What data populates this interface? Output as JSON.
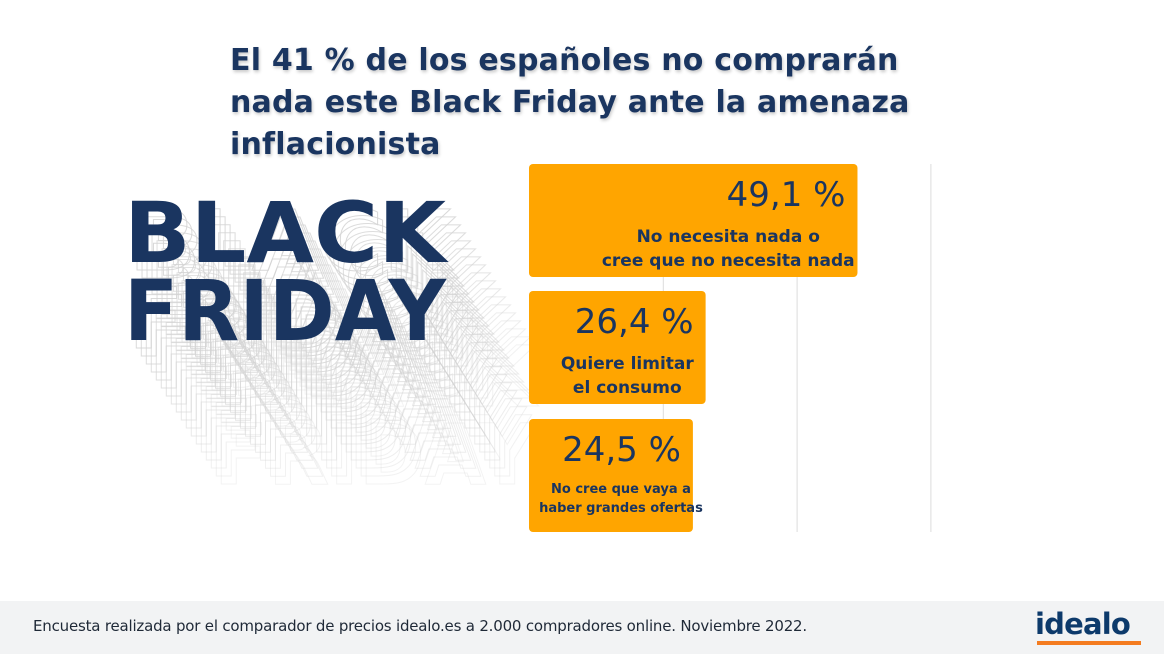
{
  "title": "El 41 % de los españoles no comprarán nada este Black Friday ante la amenaza inflacionista",
  "art": {
    "line1": "BLACK",
    "line2": "FRIDAY",
    "color": "#1a3560"
  },
  "chart_data": {
    "type": "bar",
    "orientation": "horizontal",
    "bar_color": "#ffa500",
    "grid": true,
    "xlim": [
      0,
      60
    ],
    "categories": [
      "No necesita nada o cree que no necesita nada",
      "Quiere limitar el consumo",
      "No cree que vaya a haber grandes ofertas"
    ],
    "values": [
      49.1,
      26.4,
      24.5
    ],
    "value_labels": [
      "49,1 %",
      "26,4 %",
      "24,5 %"
    ],
    "label_lines": [
      [
        "No necesita nada o",
        "cree que no necesita nada"
      ],
      [
        "Quiere limitar",
        "el consumo"
      ],
      [
        "No cree que vaya a",
        "haber grandes ofertas"
      ]
    ]
  },
  "footer": {
    "note": "Encuesta realizada por el comparador de precios idealo.es a 2.000 compradores online. Noviembre 2022.",
    "logo_text": "idealo",
    "logo_accent": "#f47c20"
  }
}
